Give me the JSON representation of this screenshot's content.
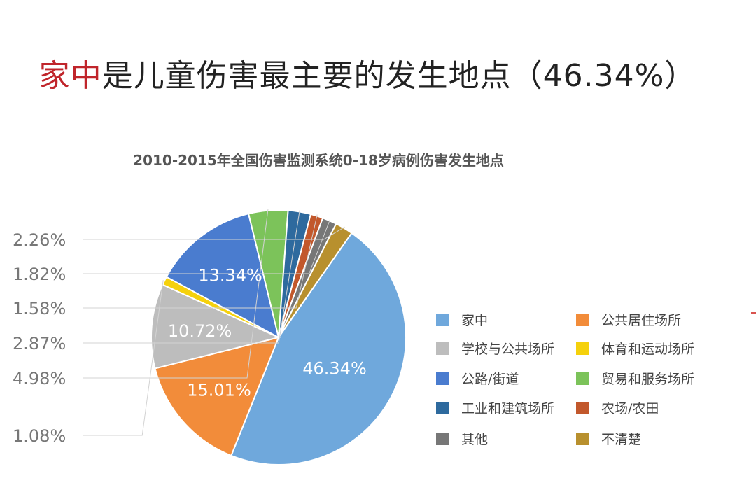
{
  "headline": {
    "highlight": "家中",
    "rest": "是儿童伤害最主要的发生地点（46.34%）"
  },
  "chart_data": {
    "type": "pie",
    "title": "2010-2015年全国伤害监测系统0-18岁病例伤害发生地点",
    "unit": "%",
    "slices": [
      {
        "name": "家中",
        "value": 46.34,
        "color": "#6fa8dc",
        "label": "46.34%"
      },
      {
        "name": "公共居住场所",
        "value": 15.01,
        "color": "#f28c3a",
        "label": "15.01%"
      },
      {
        "name": "学校与公共场所",
        "value": 10.72,
        "color": "#bdbdbd",
        "label": "10.72%"
      },
      {
        "name": "体育和运动场所",
        "value": 1.08,
        "color": "#f5d10c",
        "label": "1.08%"
      },
      {
        "name": "公路/街道",
        "value": 13.34,
        "color": "#4a7ccf",
        "label": "13.34%"
      },
      {
        "name": "贸易和服务场所",
        "value": 4.98,
        "color": "#7cc35a",
        "label": "4.98%"
      },
      {
        "name": "工业和建筑场所",
        "value": 2.87,
        "color": "#2e6a9e",
        "label": "2.87%"
      },
      {
        "name": "农场/农田",
        "value": 1.58,
        "color": "#c2582c",
        "label": "1.58%"
      },
      {
        "name": "其他",
        "value": 1.82,
        "color": "#777777",
        "label": "1.82%"
      },
      {
        "name": "不清楚",
        "value": 2.26,
        "color": "#b8902e",
        "label": "2.26%"
      }
    ],
    "legend": {
      "placement": "right",
      "columns": 2,
      "order": [
        "家中",
        "公共居住场所",
        "学校与公共场所",
        "体育和运动场所",
        "公路/街道",
        "贸易和服务场所",
        "工业和建筑场所",
        "农场/农田",
        "其他",
        "不清楚"
      ]
    }
  }
}
